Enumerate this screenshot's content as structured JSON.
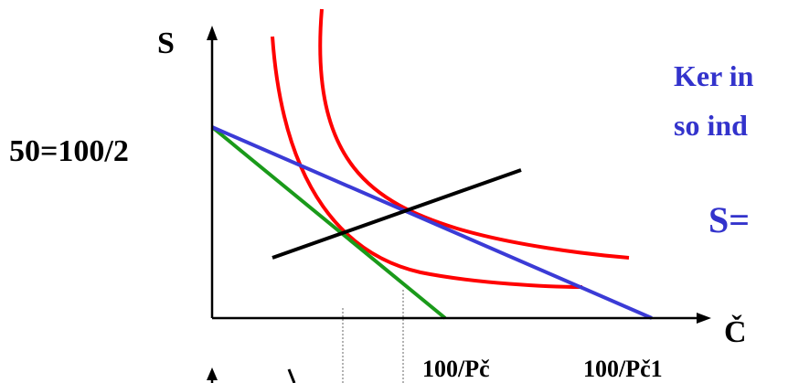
{
  "axes": {
    "y_label": "S",
    "x_label": "Č",
    "y_intercept_label": "50=100/2",
    "x_tick_labels": [
      "100/Pč",
      "100/Pč1"
    ]
  },
  "annotation": {
    "line1": "Ker in",
    "line2": "so ind",
    "formula": "S="
  },
  "colors": {
    "axes": "#000000",
    "budget_new": "#3b3bd6",
    "budget_old": "#1a9a1a",
    "indifference": "#ff0000",
    "expansion_path": "#000000",
    "guides": "#808080",
    "annotation_text": "#3333cc"
  }
}
